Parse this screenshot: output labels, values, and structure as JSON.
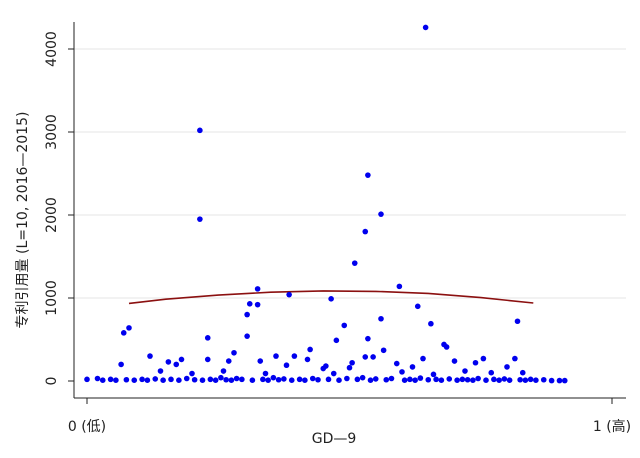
{
  "chart_data": {
    "type": "scatter",
    "title": "",
    "xlabel": "GD—9",
    "ylabel": "专利引用量 (L=10, 2016—2015)",
    "xlim": [
      0,
      1
    ],
    "ylim": [
      0,
      4300
    ],
    "x_ticks": [
      {
        "value": 0,
        "label": "0 (低)"
      },
      {
        "value": 1,
        "label": "1 (高)"
      }
    ],
    "y_ticks": [
      0,
      1000,
      2000,
      3000,
      4000
    ],
    "grid": "horizontal",
    "legend": "none",
    "colors": {
      "points": "#0000ee",
      "fit_line": "#8b1010",
      "grid": "#e6e6e6",
      "axis": "#222222"
    },
    "series": [
      {
        "kind": "points",
        "points": [
          [
            0.215,
            3020
          ],
          [
            0.215,
            1950
          ],
          [
            0.645,
            4260
          ],
          [
            0.535,
            2480
          ],
          [
            0.56,
            2010
          ],
          [
            0.53,
            1800
          ],
          [
            0.51,
            1420
          ],
          [
            0.595,
            1140
          ],
          [
            0.325,
            1110
          ],
          [
            0.31,
            930
          ],
          [
            0.325,
            920
          ],
          [
            0.385,
            1040
          ],
          [
            0.465,
            990
          ],
          [
            0.63,
            900
          ],
          [
            0.305,
            800
          ],
          [
            0.56,
            750
          ],
          [
            0.655,
            690
          ],
          [
            0.49,
            670
          ],
          [
            0.08,
            640
          ],
          [
            0.07,
            580
          ],
          [
            0.305,
            540
          ],
          [
            0.23,
            520
          ],
          [
            0.535,
            510
          ],
          [
            0.475,
            490
          ],
          [
            0.82,
            720
          ],
          [
            0.68,
            440
          ],
          [
            0.685,
            410
          ],
          [
            0.425,
            380
          ],
          [
            0.565,
            370
          ],
          [
            0.28,
            340
          ],
          [
            0.12,
            300
          ],
          [
            0.36,
            300
          ],
          [
            0.395,
            300
          ],
          [
            0.53,
            290
          ],
          [
            0.545,
            290
          ],
          [
            0.64,
            270
          ],
          [
            0.755,
            270
          ],
          [
            0.815,
            270
          ],
          [
            0.18,
            260
          ],
          [
            0.23,
            260
          ],
          [
            0.42,
            260
          ],
          [
            0.27,
            240
          ],
          [
            0.33,
            240
          ],
          [
            0.7,
            240
          ],
          [
            0.155,
            230
          ],
          [
            0.505,
            220
          ],
          [
            0.59,
            210
          ],
          [
            0.74,
            220
          ],
          [
            0.065,
            200
          ],
          [
            0.17,
            200
          ],
          [
            0.38,
            190
          ],
          [
            0.455,
            180
          ],
          [
            0.62,
            170
          ],
          [
            0.45,
            150
          ],
          [
            0.5,
            160
          ],
          [
            0.8,
            170
          ],
          [
            0.14,
            120
          ],
          [
            0.26,
            120
          ],
          [
            0.6,
            110
          ],
          [
            0.72,
            120
          ],
          [
            0.77,
            100
          ],
          [
            0.83,
            100
          ],
          [
            0.2,
            90
          ],
          [
            0.34,
            90
          ],
          [
            0.47,
            90
          ],
          [
            0.66,
            80
          ],
          [
            0.0,
            20
          ],
          [
            0.02,
            30
          ],
          [
            0.03,
            10
          ],
          [
            0.045,
            20
          ],
          [
            0.055,
            10
          ],
          [
            0.075,
            15
          ],
          [
            0.09,
            10
          ],
          [
            0.105,
            20
          ],
          [
            0.115,
            10
          ],
          [
            0.13,
            25
          ],
          [
            0.145,
            10
          ],
          [
            0.16,
            20
          ],
          [
            0.175,
            10
          ],
          [
            0.19,
            30
          ],
          [
            0.205,
            15
          ],
          [
            0.22,
            10
          ],
          [
            0.235,
            20
          ],
          [
            0.245,
            10
          ],
          [
            0.255,
            40
          ],
          [
            0.265,
            15
          ],
          [
            0.275,
            10
          ],
          [
            0.285,
            30
          ],
          [
            0.295,
            20
          ],
          [
            0.315,
            10
          ],
          [
            0.335,
            20
          ],
          [
            0.345,
            10
          ],
          [
            0.355,
            40
          ],
          [
            0.365,
            15
          ],
          [
            0.375,
            25
          ],
          [
            0.39,
            10
          ],
          [
            0.405,
            20
          ],
          [
            0.415,
            10
          ],
          [
            0.43,
            30
          ],
          [
            0.44,
            15
          ],
          [
            0.46,
            20
          ],
          [
            0.48,
            10
          ],
          [
            0.495,
            30
          ],
          [
            0.515,
            20
          ],
          [
            0.525,
            40
          ],
          [
            0.54,
            10
          ],
          [
            0.55,
            25
          ],
          [
            0.57,
            15
          ],
          [
            0.58,
            30
          ],
          [
            0.605,
            10
          ],
          [
            0.615,
            20
          ],
          [
            0.625,
            10
          ],
          [
            0.635,
            35
          ],
          [
            0.65,
            15
          ],
          [
            0.665,
            20
          ],
          [
            0.675,
            10
          ],
          [
            0.69,
            25
          ],
          [
            0.705,
            10
          ],
          [
            0.715,
            20
          ],
          [
            0.725,
            15
          ],
          [
            0.735,
            10
          ],
          [
            0.745,
            30
          ],
          [
            0.76,
            10
          ],
          [
            0.775,
            20
          ],
          [
            0.785,
            10
          ],
          [
            0.795,
            25
          ],
          [
            0.805,
            10
          ],
          [
            0.825,
            15
          ],
          [
            0.835,
            10
          ],
          [
            0.845,
            20
          ],
          [
            0.855,
            10
          ],
          [
            0.87,
            15
          ],
          [
            0.885,
            5
          ],
          [
            0.9,
            5
          ],
          [
            0.91,
            5
          ]
        ]
      },
      {
        "kind": "fit_line",
        "points": [
          [
            0.08,
            935
          ],
          [
            0.15,
            985
          ],
          [
            0.25,
            1035
          ],
          [
            0.35,
            1070
          ],
          [
            0.45,
            1085
          ],
          [
            0.55,
            1080
          ],
          [
            0.65,
            1055
          ],
          [
            0.75,
            1005
          ],
          [
            0.85,
            940
          ]
        ]
      }
    ]
  }
}
